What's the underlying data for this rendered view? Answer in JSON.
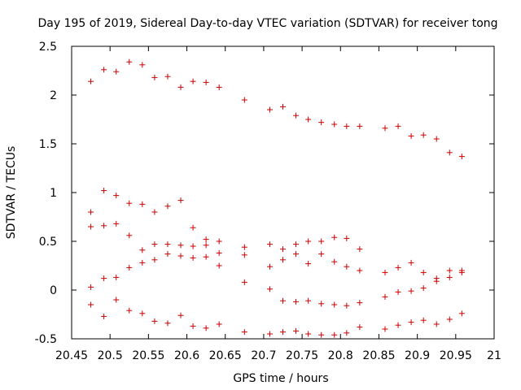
{
  "chart_data": {
    "type": "scatter",
    "title": "Day 195 of 2019, Sidereal Day-to-day VTEC variation (SDTVAR) for receiver tong",
    "xlabel": "GPS time / hours",
    "ylabel": "SDTVAR / TECUs",
    "xlim": [
      20.45,
      21
    ],
    "ylim": [
      -0.5,
      2.5
    ],
    "xticks": [
      "20.45",
      "20.5",
      "20.55",
      "20.6",
      "20.65",
      "20.7",
      "20.75",
      "20.8",
      "20.85",
      "20.9",
      "20.95",
      "21"
    ],
    "yticks": [
      "-0.5",
      "0",
      "0.5",
      "1",
      "1.5",
      "2",
      "2.5"
    ],
    "grid": false,
    "marker": "+",
    "color": "#cc0000",
    "series": [
      {
        "name": "SDTVAR",
        "points": [
          [
            20.475,
            2.14
          ],
          [
            20.492,
            2.26
          ],
          [
            20.508,
            2.24
          ],
          [
            20.525,
            2.34
          ],
          [
            20.542,
            2.31
          ],
          [
            20.558,
            2.18
          ],
          [
            20.575,
            2.19
          ],
          [
            20.592,
            2.08
          ],
          [
            20.608,
            2.14
          ],
          [
            20.625,
            2.13
          ],
          [
            20.642,
            2.08
          ],
          [
            20.675,
            1.95
          ],
          [
            20.708,
            1.85
          ],
          [
            20.725,
            1.88
          ],
          [
            20.742,
            1.79
          ],
          [
            20.758,
            1.75
          ],
          [
            20.775,
            1.72
          ],
          [
            20.792,
            1.7
          ],
          [
            20.808,
            1.68
          ],
          [
            20.825,
            1.68
          ],
          [
            20.858,
            1.66
          ],
          [
            20.875,
            1.68
          ],
          [
            20.892,
            1.58
          ],
          [
            20.908,
            1.59
          ],
          [
            20.925,
            1.55
          ],
          [
            20.942,
            1.41
          ],
          [
            20.958,
            1.37
          ],
          [
            20.475,
            0.8
          ],
          [
            20.492,
            1.02
          ],
          [
            20.508,
            0.97
          ],
          [
            20.525,
            0.89
          ],
          [
            20.542,
            0.88
          ],
          [
            20.558,
            0.8
          ],
          [
            20.575,
            0.86
          ],
          [
            20.592,
            0.92
          ],
          [
            20.608,
            0.64
          ],
          [
            20.625,
            0.52
          ],
          [
            20.642,
            0.5
          ],
          [
            20.675,
            0.44
          ],
          [
            20.708,
            0.47
          ],
          [
            20.725,
            0.42
          ],
          [
            20.742,
            0.47
          ],
          [
            20.758,
            0.5
          ],
          [
            20.775,
            0.5
          ],
          [
            20.792,
            0.54
          ],
          [
            20.808,
            0.53
          ],
          [
            20.825,
            0.42
          ],
          [
            20.858,
            0.18
          ],
          [
            20.875,
            0.23
          ],
          [
            20.892,
            0.28
          ],
          [
            20.908,
            0.18
          ],
          [
            20.925,
            0.12
          ],
          [
            20.942,
            0.2
          ],
          [
            20.958,
            0.2
          ],
          [
            20.475,
            0.65
          ],
          [
            20.492,
            0.66
          ],
          [
            20.508,
            0.68
          ],
          [
            20.525,
            0.56
          ],
          [
            20.542,
            0.41
          ],
          [
            20.558,
            0.47
          ],
          [
            20.575,
            0.47
          ],
          [
            20.592,
            0.46
          ],
          [
            20.608,
            0.45
          ],
          [
            20.625,
            0.46
          ],
          [
            20.642,
            0.38
          ],
          [
            20.675,
            0.36
          ],
          [
            20.708,
            0.24
          ],
          [
            20.725,
            0.31
          ],
          [
            20.742,
            0.37
          ],
          [
            20.758,
            0.27
          ],
          [
            20.775,
            0.37
          ],
          [
            20.792,
            0.29
          ],
          [
            20.808,
            0.24
          ],
          [
            20.825,
            0.2
          ],
          [
            20.858,
            -0.07
          ],
          [
            20.875,
            -0.02
          ],
          [
            20.892,
            -0.01
          ],
          [
            20.908,
            0.02
          ],
          [
            20.925,
            0.09
          ],
          [
            20.942,
            0.13
          ],
          [
            20.958,
            0.18
          ],
          [
            20.475,
            0.03
          ],
          [
            20.492,
            0.12
          ],
          [
            20.508,
            0.13
          ],
          [
            20.525,
            0.23
          ],
          [
            20.542,
            0.28
          ],
          [
            20.558,
            0.31
          ],
          [
            20.575,
            0.37
          ],
          [
            20.592,
            0.35
          ],
          [
            20.608,
            0.33
          ],
          [
            20.625,
            0.34
          ],
          [
            20.642,
            0.25
          ],
          [
            20.675,
            0.08
          ],
          [
            20.708,
            0.01
          ],
          [
            20.725,
            -0.11
          ],
          [
            20.742,
            -0.12
          ],
          [
            20.758,
            -0.11
          ],
          [
            20.775,
            -0.14
          ],
          [
            20.792,
            -0.15
          ],
          [
            20.808,
            -0.16
          ],
          [
            20.825,
            -0.13
          ],
          [
            20.475,
            -0.15
          ],
          [
            20.492,
            -0.27
          ],
          [
            20.508,
            -0.1
          ],
          [
            20.525,
            -0.21
          ],
          [
            20.542,
            -0.24
          ],
          [
            20.558,
            -0.32
          ],
          [
            20.575,
            -0.34
          ],
          [
            20.592,
            -0.26
          ],
          [
            20.608,
            -0.37
          ],
          [
            20.625,
            -0.39
          ],
          [
            20.642,
            -0.35
          ],
          [
            20.675,
            -0.43
          ],
          [
            20.708,
            -0.45
          ],
          [
            20.725,
            -0.43
          ],
          [
            20.742,
            -0.42
          ],
          [
            20.758,
            -0.45
          ],
          [
            20.775,
            -0.46
          ],
          [
            20.792,
            -0.46
          ],
          [
            20.808,
            -0.44
          ],
          [
            20.825,
            -0.38
          ],
          [
            20.858,
            -0.4
          ],
          [
            20.875,
            -0.36
          ],
          [
            20.892,
            -0.33
          ],
          [
            20.908,
            -0.31
          ],
          [
            20.925,
            -0.35
          ],
          [
            20.942,
            -0.3
          ],
          [
            20.958,
            -0.24
          ]
        ]
      }
    ]
  }
}
